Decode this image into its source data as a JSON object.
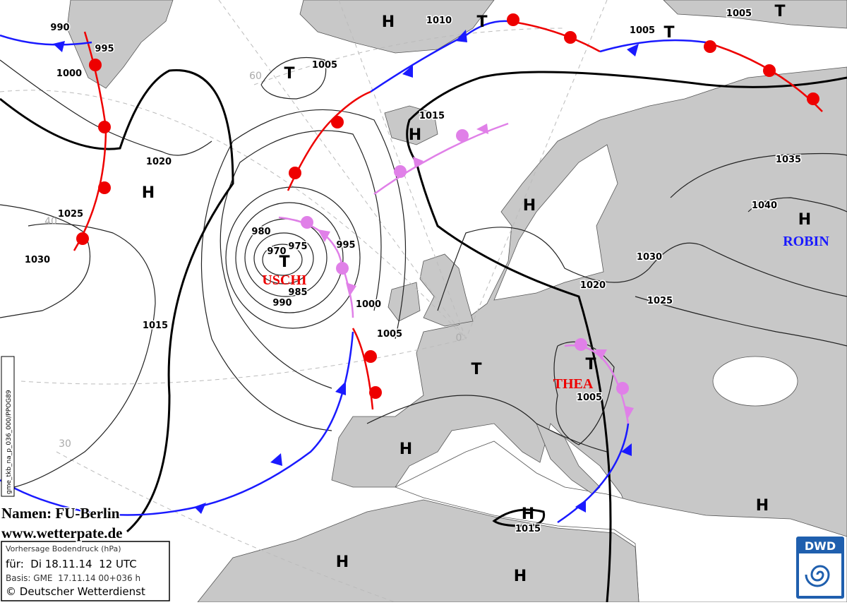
{
  "map": {
    "pressure_centers": [
      "H",
      "T",
      "T",
      "T",
      "T",
      "H",
      "H",
      "H",
      "H",
      "T",
      "T",
      "T",
      "H",
      "H",
      "H",
      "H",
      "H"
    ],
    "isobar_labels": [
      990,
      995,
      1000,
      1010,
      1005,
      1005,
      1005,
      1015,
      1020,
      1025,
      1030,
      1035,
      1040,
      980,
      970,
      975,
      995,
      985,
      990,
      1000,
      1005,
      1015,
      1030,
      1020,
      1025,
      1005,
      1015
    ],
    "latitude_labels": [
      60,
      40,
      30,
      0
    ],
    "storm_names": [
      "USCHI",
      "THEA",
      "ROBIN"
    ],
    "credits": [
      "Namen: FU-Berlin",
      "www.wetterpate.de"
    ],
    "info_box": [
      "Vorhersage Bodendruck (hPa)",
      "für:  Di 18.11.14  12 UTC",
      "Basis: GME  17.11.14 00+036 h",
      "© Deutscher Wetterdienst"
    ],
    "logo": "DWD",
    "file_id": "gme_tkb_na_p_036_000/PPOG89"
  }
}
